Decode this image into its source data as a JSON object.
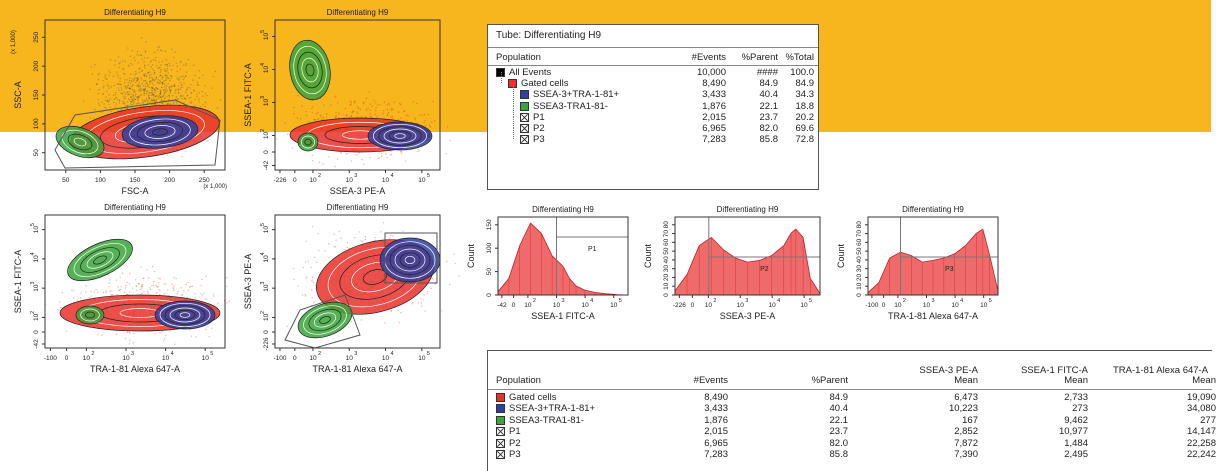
{
  "colors": {
    "band": "#f7b51e",
    "red": "#e8312b",
    "blue": "#2f3fa0",
    "green": "#3aa53a",
    "black": "#000000"
  },
  "plots": [
    {
      "title": "Differentiating H9",
      "xlabel": "FSC-A",
      "ylabel": "SSC-A",
      "xunit": "(x 1,000)",
      "yunit": "(x 1,000)",
      "xticks": [
        "50",
        "100",
        "150",
        "200",
        "250"
      ],
      "yticks": [
        "50",
        "100",
        "150",
        "200",
        "250"
      ]
    },
    {
      "title": "Differentiating H9",
      "xlabel": "SSEA-3 PE-A",
      "ylabel": "SSEA-1 FITC-A",
      "xticks": [
        "-226",
        "0",
        "10",
        "10",
        "10",
        "10"
      ],
      "xexp": [
        "",
        "",
        "2",
        "3",
        "4",
        "5"
      ],
      "yticks": [
        "-42",
        "0",
        "10",
        "10",
        "10",
        "10"
      ],
      "yexp": [
        "",
        "",
        "2",
        "3",
        "4",
        "5"
      ]
    },
    {
      "title": "Differentiating H9",
      "xlabel": "TRA-1-81 Alexa 647-A",
      "ylabel": "SSEA-1 FITC-A",
      "xticks": [
        "-100",
        "0",
        "10",
        "10",
        "10",
        "10"
      ],
      "xexp": [
        "",
        "",
        "2",
        "3",
        "4",
        "5"
      ],
      "yticks": [
        "-42",
        "0",
        "10",
        "10",
        "10",
        "10"
      ],
      "yexp": [
        "",
        "",
        "2",
        "3",
        "4",
        "5"
      ]
    },
    {
      "title": "Differentiating H9",
      "xlabel": "TRA-1-81 Alexa 647-A",
      "ylabel": "SSEA-3 PE-A",
      "xticks": [
        "-100",
        "0",
        "10",
        "10",
        "10",
        "10"
      ],
      "xexp": [
        "",
        "",
        "2",
        "3",
        "4",
        "5"
      ],
      "yticks": [
        "-226",
        "0",
        "10",
        "10",
        "10",
        "10"
      ],
      "yexp": [
        "",
        "",
        "2",
        "3",
        "4",
        "5"
      ]
    }
  ],
  "histograms": [
    {
      "title": "Differentiating H9",
      "xlabel": "SSEA-1 FITC-A",
      "ylabel": "Count",
      "gate": "P1",
      "xticks": [
        "-42",
        "0",
        "10",
        "10",
        "10",
        "10"
      ],
      "xexp": [
        "",
        "",
        "2",
        "3",
        "4",
        "5"
      ],
      "yticks": [
        "0",
        "50",
        "100",
        "150"
      ]
    },
    {
      "title": "Differentiating H9",
      "xlabel": "SSEA-3 PE-A",
      "ylabel": "Count",
      "gate": "P2",
      "xticks": [
        "-226",
        "0",
        "10",
        "10",
        "10",
        "10"
      ],
      "xexp": [
        "",
        "",
        "2",
        "3",
        "4",
        "5"
      ],
      "yticks": [
        "0",
        "10",
        "20",
        "30",
        "40",
        "50",
        "60",
        "70",
        "80"
      ]
    },
    {
      "title": "Differentiating H9",
      "xlabel": "TRA-1-81 Alexa 647-A",
      "ylabel": "Count",
      "gate": "P3",
      "xticks": [
        "-100",
        "0",
        "10",
        "10",
        "10",
        "10"
      ],
      "xexp": [
        "",
        "",
        "2",
        "3",
        "4",
        "5"
      ],
      "yticks": [
        "0",
        "10",
        "20",
        "30",
        "40",
        "50",
        "60",
        "70",
        "80"
      ]
    }
  ],
  "tube": {
    "title": "Tube:  Differentiating H9",
    "headers": [
      "Population",
      "#Events",
      "%Parent",
      "%Total"
    ],
    "rows": [
      {
        "name": "All Events",
        "events": "10,000",
        "parent": "####",
        "total": "100.0",
        "swatch": "black",
        "indent": 0
      },
      {
        "name": "Gated cells",
        "events": "8,490",
        "parent": "84.9",
        "total": "84.9",
        "swatch": "red",
        "indent": 1
      },
      {
        "name": "SSEA-3+TRA-1-81+",
        "events": "3,433",
        "parent": "40.4",
        "total": "34.3",
        "swatch": "blue",
        "indent": 2
      },
      {
        "name": "SSEA3-TRA1-81-",
        "events": "1,876",
        "parent": "22.1",
        "total": "18.8",
        "swatch": "green",
        "indent": 2
      },
      {
        "name": "P1",
        "events": "2,015",
        "parent": "23.7",
        "total": "20.2",
        "swatch": "gate",
        "indent": 2
      },
      {
        "name": "P2",
        "events": "6,965",
        "parent": "82.0",
        "total": "69.6",
        "swatch": "gate",
        "indent": 2
      },
      {
        "name": "P3",
        "events": "7,283",
        "parent": "85.8",
        "total": "72.8",
        "swatch": "gate",
        "indent": 2
      }
    ]
  },
  "stats": {
    "headers": {
      "population": "Population",
      "events": "#Events",
      "parent": "%Parent",
      "c1a": "SSEA-3 PE-A",
      "c1b": "Mean",
      "c2a": "SSEA-1 FITC-A",
      "c2b": "Mean",
      "c3a": "TRA-1-81 Alexa 647-A",
      "c3b": "Mean"
    },
    "rows": [
      {
        "name": "Gated cells",
        "events": "8,490",
        "parent": "84.9",
        "m1": "6,473",
        "m2": "2,733",
        "m3": "19,090",
        "swatch": "red"
      },
      {
        "name": "SSEA-3+TRA-1-81+",
        "events": "3,433",
        "parent": "40.4",
        "m1": "10,223",
        "m2": "273",
        "m3": "34,080",
        "swatch": "blue"
      },
      {
        "name": "SSEA3-TRA1-81-",
        "events": "1,876",
        "parent": "22.1",
        "m1": "167",
        "m2": "9,462",
        "m3": "277",
        "swatch": "green"
      },
      {
        "name": "P1",
        "events": "2,015",
        "parent": "23.7",
        "m1": "2,852",
        "m2": "10,977",
        "m3": "14,147",
        "swatch": "gate"
      },
      {
        "name": "P2",
        "events": "6,965",
        "parent": "82.0",
        "m1": "7,872",
        "m2": "1,484",
        "m3": "22,258",
        "swatch": "gate"
      },
      {
        "name": "P3",
        "events": "7,283",
        "parent": "85.8",
        "m1": "7,390",
        "m2": "2,495",
        "m3": "22,242",
        "swatch": "gate"
      }
    ]
  },
  "chart_data": [
    {
      "type": "scatter",
      "title": "Differentiating H9",
      "xlabel": "FSC-A",
      "ylabel": "SSC-A",
      "xlim": [
        20,
        260
      ],
      "ylim": [
        20,
        260
      ],
      "populations": [
        "Gated cells",
        "SSEA-3+TRA-1-81+",
        "SSEA3-TRA1-81-"
      ]
    },
    {
      "type": "scatter",
      "title": "Differentiating H9",
      "xlabel": "SSEA-3 PE-A",
      "ylabel": "SSEA-1 FITC-A",
      "scale": "biexponential"
    },
    {
      "type": "scatter",
      "title": "Differentiating H9",
      "xlabel": "TRA-1-81 Alexa 647-A",
      "ylabel": "SSEA-1 FITC-A",
      "scale": "biexponential"
    },
    {
      "type": "scatter",
      "title": "Differentiating H9",
      "xlabel": "TRA-1-81 Alexa 647-A",
      "ylabel": "SSEA-3 PE-A",
      "scale": "biexponential"
    },
    {
      "type": "area",
      "title": "Differentiating H9",
      "xlabel": "SSEA-1 FITC-A",
      "ylabel": "Count",
      "ylim": [
        0,
        180
      ],
      "gate": "P1",
      "x": [
        -1,
        -0.5,
        0,
        0.5,
        1,
        1.5,
        2,
        2.3,
        2.6,
        3,
        3.5,
        4,
        4.5,
        5
      ],
      "values": [
        8,
        40,
        120,
        175,
        150,
        95,
        70,
        40,
        22,
        12,
        6,
        3,
        1,
        0
      ]
    },
    {
      "type": "area",
      "title": "Differentiating H9",
      "xlabel": "SSEA-3 PE-A",
      "ylabel": "Count",
      "ylim": [
        0,
        90
      ],
      "gate": "P2",
      "x": [
        -1,
        -0.5,
        0,
        0.5,
        1,
        1.5,
        2,
        2.5,
        3,
        3.5,
        3.8,
        4,
        4.3,
        4.6,
        5
      ],
      "values": [
        5,
        25,
        60,
        70,
        55,
        45,
        40,
        42,
        48,
        60,
        75,
        80,
        70,
        20,
        2
      ]
    },
    {
      "type": "area",
      "title": "Differentiating H9",
      "xlabel": "TRA-1-81 Alexa 647-A",
      "ylabel": "Count",
      "ylim": [
        0,
        90
      ],
      "gate": "P3",
      "x": [
        -1,
        -0.5,
        0,
        0.5,
        1,
        1.5,
        2,
        2.5,
        3,
        3.5,
        4,
        4.3,
        4.6,
        5
      ],
      "values": [
        3,
        15,
        45,
        52,
        48,
        40,
        42,
        45,
        50,
        60,
        75,
        80,
        50,
        5
      ]
    }
  ]
}
